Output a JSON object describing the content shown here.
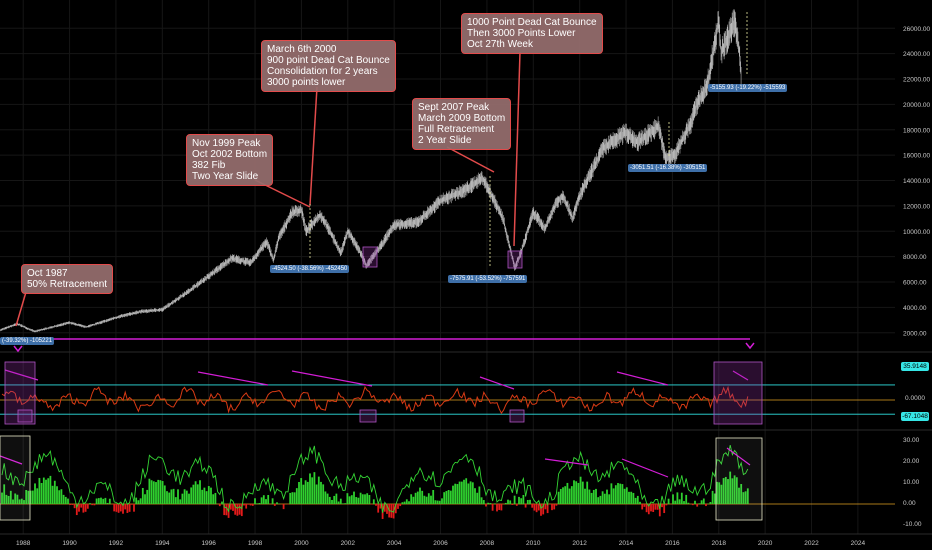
{
  "chart_data": [
    {
      "type": "line",
      "panel": "price",
      "x_years": [
        1987.0,
        1987.75,
        1988.5,
        1990,
        1990.7,
        1991.5,
        1992,
        1993,
        1994,
        1995,
        1996,
        1997,
        1997.8,
        1998.5,
        1998.8,
        1999,
        1999.6,
        2000.0,
        2000.2,
        2000.8,
        2001.0,
        2001.7,
        2002.0,
        2002.5,
        2002.8,
        2003.3,
        2004,
        2005,
        2006,
        2007.0,
        2007.8,
        2008.3,
        2008.7,
        2009.2,
        2009.5,
        2010,
        2010.5,
        2011,
        2011.3,
        2011.7,
        2012,
        2013,
        2014,
        2014.5,
        2015.4,
        2015.7,
        2016.1,
        2016.8,
        2017,
        2017.5,
        2018.0,
        2018.1,
        2018.7,
        2018.9,
        2018.97
      ],
      "close": [
        2200,
        2700,
        2100,
        2800,
        2450,
        2900,
        3200,
        3650,
        3830,
        5100,
        6450,
        7900,
        7500,
        9200,
        7700,
        9400,
        11500,
        11700,
        10000,
        11300,
        10800,
        8300,
        10000,
        8500,
        7300,
        8500,
        10500,
        10700,
        12400,
        13200,
        14200,
        12500,
        11000,
        7100,
        8500,
        11500,
        10200,
        12300,
        12800,
        11000,
        12800,
        16500,
        17800,
        17000,
        18300,
        15700,
        16000,
        18500,
        19800,
        21500,
        26600,
        24000,
        26600,
        24000,
        21800
      ],
      "y_ticks": [
        2000.0,
        4000.0,
        6000.0,
        8000.0,
        10000.0,
        12000.0,
        14000.0,
        16000.0,
        18000.0,
        20000.0,
        22000.0,
        24000.0,
        26000.0
      ],
      "ylim": [
        800,
        27600
      ]
    },
    {
      "type": "line",
      "panel": "oscillator",
      "series": [
        {
          "values_note": "oscillating series",
          "upper": 35.9148,
          "zero": 0.0,
          "lower": -67.1048
        }
      ]
    },
    {
      "type": "line",
      "panel": "histogram-oscillator",
      "y_ticks": [
        30.0,
        20.0,
        10.0,
        0.0,
        -10.0
      ]
    }
  ],
  "x_tick_labels": [
    "1988",
    "1990",
    "1992",
    "1994",
    "1996",
    "1998",
    "2000",
    "2002",
    "2004",
    "2006",
    "2008",
    "2010",
    "2012",
    "2014",
    "2016",
    "2018",
    "2020",
    "2022",
    "2024"
  ],
  "callouts": {
    "c1987": "Oct 1987\n50% Retracement",
    "c1999": "Nov 1999 Peak\nOct 2002 Bottom\n382 Fib\nTwo Year Slide",
    "c2000": "March 6th 2000\n900 point Dead Cat Bounce\nConsolidation for 2 years\n3000 points lower",
    "c2007": "Sept 2007 Peak\nMarch 2009 Bottom\nFull Retracement\n2 Year Slide",
    "c2018": "1000 Point Dead Cat Bounce\nThen 3000 Points Lower\nOct 27th Week"
  },
  "measure_labels": {
    "m2002": "-4524.50 (-38.56%) -452450",
    "m2009": "-7575.91 (-53.52%) -757591",
    "m2016": "-3051.51 (-16.38%) -305151",
    "m2018": "-5155.93 (-19.22%) -515593",
    "m1987": "(-39.32%) -105221"
  },
  "indicator_badges": {
    "upper": "35.9148",
    "zero": "0.0000",
    "lower": "-67.1048"
  },
  "colors": {
    "price": "#b8b8b8",
    "oscillator": "#d83a14",
    "histo_pos": "#2fd12f",
    "histo_neg": "#e31b1b",
    "green_line": "#34d434",
    "magenta": "#d31dd6",
    "cyan": "#2fe3e3",
    "orange": "#e0a020"
  }
}
